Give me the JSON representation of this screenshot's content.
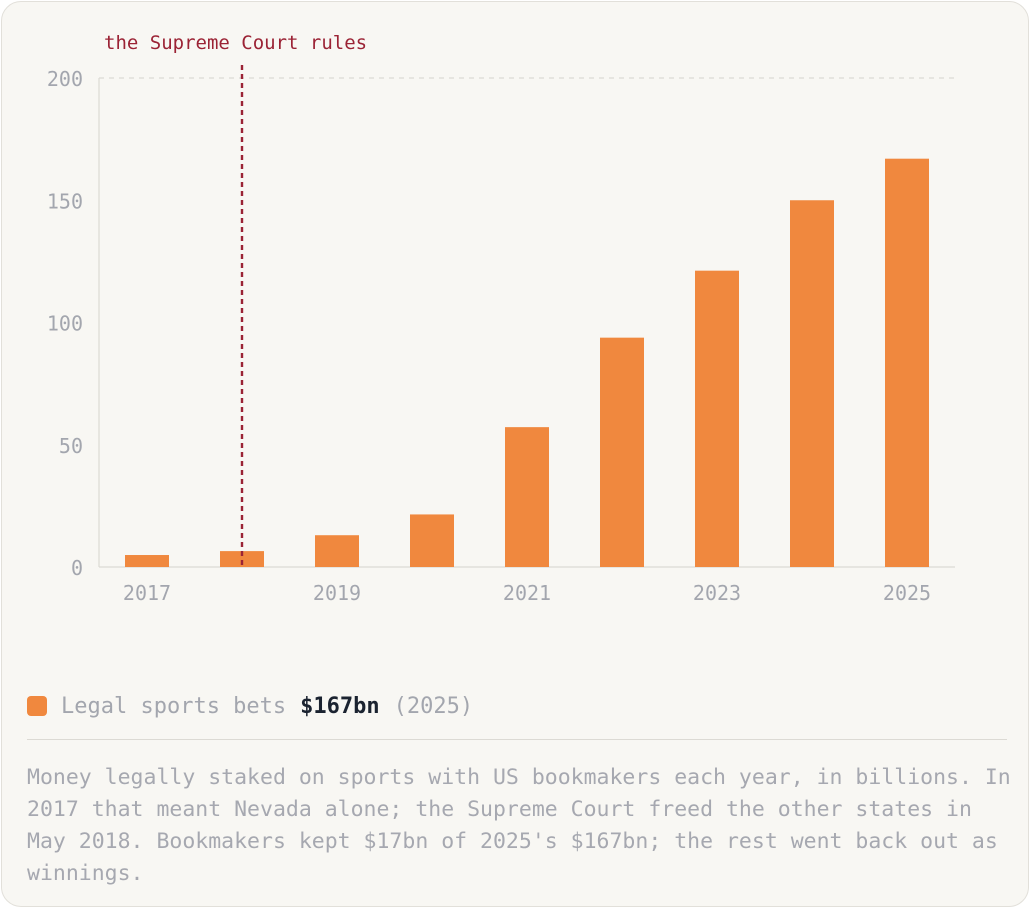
{
  "colors": {
    "bar": "#f0883e",
    "annotation": "#9b2335",
    "axis_text": "#a3a6ae",
    "grid": "#dcdad4",
    "background": "#f8f7f3"
  },
  "chart_data": {
    "type": "bar",
    "categories": [
      "2017",
      "2018",
      "2019",
      "2020",
      "2021",
      "2022",
      "2023",
      "2024",
      "2025"
    ],
    "tick_labels": [
      "2017",
      "",
      "2019",
      "",
      "2021",
      "",
      "2023",
      "",
      "2025"
    ],
    "series": [
      {
        "name": "Legal sports bets",
        "values": [
          4.9,
          6.5,
          13,
          21.5,
          57.2,
          93.8,
          121.2,
          150,
          167
        ]
      }
    ],
    "yticks": [
      0,
      50,
      100,
      150,
      200
    ],
    "ylim": [
      0,
      200
    ],
    "grid": "top line only, dashed",
    "annotation": {
      "label": "the Supreme Court rules",
      "x": "2018"
    }
  },
  "legend": {
    "label": "Legal sports bets",
    "value": "$167bn",
    "year": "(2025)"
  },
  "caption": "Money legally staked on sports with US bookmakers each year, in billions. In 2017 that meant Nevada alone; the Supreme Court freed the other states in May 2018. Bookmakers kept $17bn of 2025's $167bn; the rest went back out as winnings."
}
